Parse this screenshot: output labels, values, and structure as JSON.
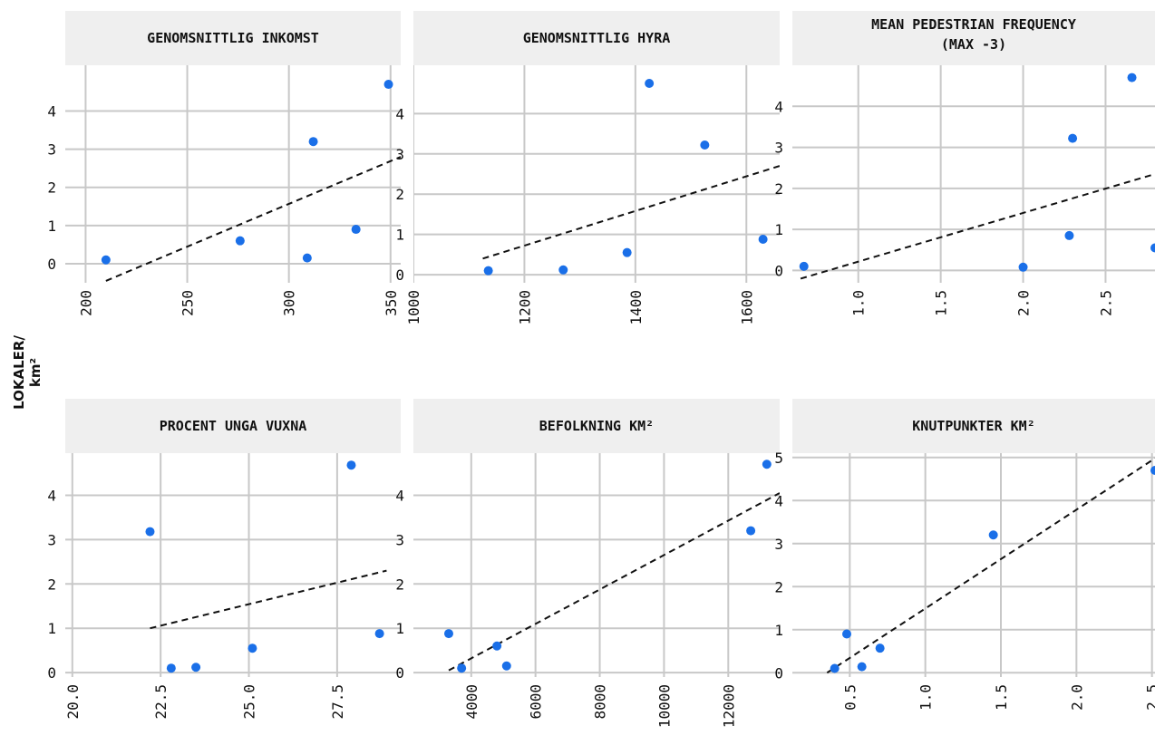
{
  "figure": {
    "ylabel_line1": "LOKALER/",
    "ylabel_line2": "km²"
  },
  "colors": {
    "point": "#1a6fe8",
    "trend": "#111111",
    "grid": "#c8c8c8",
    "strip": "#efefef"
  },
  "chart_data": [
    {
      "type": "scatter",
      "title": "GENOMSNITTLIG INKOMST",
      "xticks": [
        200,
        250,
        300,
        350
      ],
      "xtick_labels": [
        "200",
        "250",
        "300",
        "350"
      ],
      "yticks": [
        0,
        1,
        2,
        3,
        4
      ],
      "ytick_labels": [
        "0",
        "1",
        "2",
        "3",
        "4"
      ],
      "xlim": [
        190,
        355
      ],
      "ylim": [
        -0.5,
        5.2
      ],
      "x": [
        210,
        276,
        309,
        312,
        333,
        349
      ],
      "y": [
        0.1,
        0.6,
        0.15,
        3.2,
        0.9,
        4.7
      ],
      "trend": [
        [
          210,
          -0.45
        ],
        [
          355,
          2.8
        ]
      ]
    },
    {
      "type": "scatter",
      "title": "GENOMSNITTLIG HYRA",
      "xticks": [
        1000,
        1200,
        1400,
        1600
      ],
      "xtick_labels": [
        "1000",
        "1200",
        "1400",
        "1600"
      ],
      "yticks": [
        0,
        1,
        2,
        3,
        4
      ],
      "ytick_labels": [
        "0",
        "1",
        "2",
        "3",
        "4"
      ],
      "xlim": [
        1000,
        1660
      ],
      "ylim": [
        -0.2,
        5.2
      ],
      "x": [
        1135,
        1270,
        1385,
        1425,
        1525,
        1630
      ],
      "y": [
        0.1,
        0.12,
        0.55,
        4.75,
        3.22,
        0.88
      ],
      "trend": [
        [
          1125,
          0.4
        ],
        [
          1660,
          2.7
        ]
      ]
    },
    {
      "type": "scatter",
      "title": "MEAN PEDESTRIAN FREQUENCY (MAX -3)",
      "xticks": [
        1.0,
        1.5,
        2.0,
        2.5
      ],
      "xtick_labels": [
        "1.0",
        "1.5",
        "2.0",
        "2.5"
      ],
      "yticks": [
        0,
        1,
        2,
        3,
        4
      ],
      "ytick_labels": [
        "0",
        "1",
        "2",
        "3",
        "4"
      ],
      "xlim": [
        0.6,
        2.8
      ],
      "ylim": [
        -0.3,
        5.0
      ],
      "x": [
        0.67,
        2.0,
        2.28,
        2.3,
        2.66,
        2.8
      ],
      "y": [
        0.1,
        0.08,
        0.85,
        3.22,
        4.7,
        0.55
      ],
      "trend": [
        [
          0.65,
          -0.2
        ],
        [
          2.8,
          2.35
        ]
      ]
    },
    {
      "type": "scatter",
      "title": "PROCENT UNGA VUXNA",
      "xticks": [
        20.0,
        22.5,
        25.0,
        27.5
      ],
      "xtick_labels": [
        "20.0",
        "22.5",
        "25.0",
        "27.5"
      ],
      "yticks": [
        0,
        1,
        2,
        3,
        4
      ],
      "ytick_labels": [
        "0",
        "1",
        "2",
        "3",
        "4"
      ],
      "xlim": [
        19.8,
        29.3
      ],
      "ylim": [
        -0.1,
        4.95
      ],
      "x": [
        22.2,
        22.8,
        23.5,
        25.1,
        27.9,
        28.7
      ],
      "y": [
        3.18,
        0.1,
        0.12,
        0.55,
        4.68,
        0.88
      ],
      "trend": [
        [
          22.2,
          1.0
        ],
        [
          28.9,
          2.3
        ]
      ]
    },
    {
      "type": "scatter",
      "title": "BEFOLKNING KM²",
      "xticks": [
        4000,
        6000,
        8000,
        10000,
        12000
      ],
      "xtick_labels": [
        "4000",
        "6000",
        "8000",
        "10000",
        "12000"
      ],
      "yticks": [
        0,
        1,
        2,
        3,
        4
      ],
      "ytick_labels": [
        "0",
        "1",
        "2",
        "3",
        "4"
      ],
      "xlim": [
        2200,
        13600
      ],
      "ylim": [
        -0.1,
        4.95
      ],
      "x": [
        3300,
        3700,
        4800,
        5100,
        12700,
        13200
      ],
      "y": [
        0.88,
        0.1,
        0.6,
        0.15,
        3.2,
        4.7
      ],
      "trend": [
        [
          3300,
          0.05
        ],
        [
          13600,
          4.05
        ]
      ]
    },
    {
      "type": "scatter",
      "title": "KNUTPUNKTER KM²",
      "xticks": [
        0.5,
        1.0,
        1.5,
        2.0,
        2.5
      ],
      "xtick_labels": [
        "0.5",
        "1.0",
        "1.5",
        "2.0",
        "2.5"
      ],
      "yticks": [
        0,
        1,
        2,
        3,
        4,
        5
      ],
      "ytick_labels": [
        "0",
        "1",
        "2",
        "3",
        "4",
        "5"
      ],
      "xlim": [
        0.12,
        2.52
      ],
      "ylim": [
        -0.1,
        5.1
      ],
      "x": [
        0.4,
        0.48,
        0.58,
        0.7,
        1.45,
        2.52
      ],
      "y": [
        0.1,
        0.9,
        0.14,
        0.57,
        3.2,
        4.7
      ],
      "trend": [
        [
          0.35,
          0.0
        ],
        [
          2.52,
          4.98
        ]
      ]
    }
  ]
}
